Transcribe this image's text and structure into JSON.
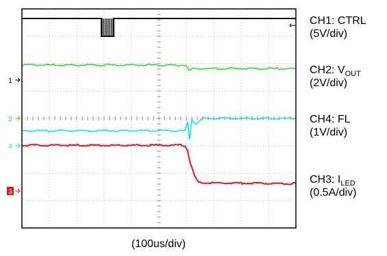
{
  "chart_data": {
    "type": "line",
    "grid": true,
    "grid_divisions": {
      "horizontal": 10,
      "vertical": 8
    },
    "xlabel": "(100us/div)",
    "x_unit": "div",
    "xlim": [
      0,
      10
    ],
    "ylim": [
      0,
      8
    ],
    "series": [
      {
        "name": "CH1: CTRL",
        "scale_text": "(5V/div)",
        "marker_text": "1",
        "color": "#000000",
        "ground_div": 5.4,
        "x": [
          0,
          2.9,
          2.9,
          3.35,
          3.35,
          10
        ],
        "y": [
          7.65,
          7.65,
          7.0,
          7.0,
          7.65,
          7.65
        ],
        "burst": {
          "x_start": 2.9,
          "x_end": 3.35,
          "low": 7.0,
          "high": 7.65
        }
      },
      {
        "name": "CH2: V",
        "name_subscript": "OUT",
        "scale_text": "(2V/div)",
        "color": "#22dd22",
        "x": [
          0,
          6.0,
          6.1,
          6.25,
          6.5,
          10
        ],
        "y": [
          5.95,
          5.95,
          5.72,
          5.82,
          5.82,
          5.82
        ]
      },
      {
        "name": "CH4: FL",
        "scale_text": "(1V/div)",
        "marker_text": "4",
        "color": "#00e5ee",
        "ground_div": 3.0,
        "x": [
          0,
          5.95,
          6.05,
          6.12,
          6.2,
          6.35,
          6.6,
          10
        ],
        "y": [
          3.55,
          3.55,
          3.85,
          3.25,
          3.95,
          3.8,
          4.0,
          4.0
        ]
      },
      {
        "name": "CH3: I",
        "name_subscript": "LED",
        "scale_text": "(0.5A/div)",
        "marker_text": "3",
        "color": "#ee1111",
        "ground_div": 1.35,
        "x": [
          0,
          5.95,
          6.05,
          6.15,
          6.3,
          6.45,
          10
        ],
        "y": [
          3.02,
          3.02,
          2.85,
          2.35,
          1.9,
          1.65,
          1.62
        ]
      }
    ],
    "extra_markers": [
      {
        "text": "2",
        "color": "#22dd22",
        "at_div": 4.0
      }
    ],
    "trigger_marker": "←"
  }
}
